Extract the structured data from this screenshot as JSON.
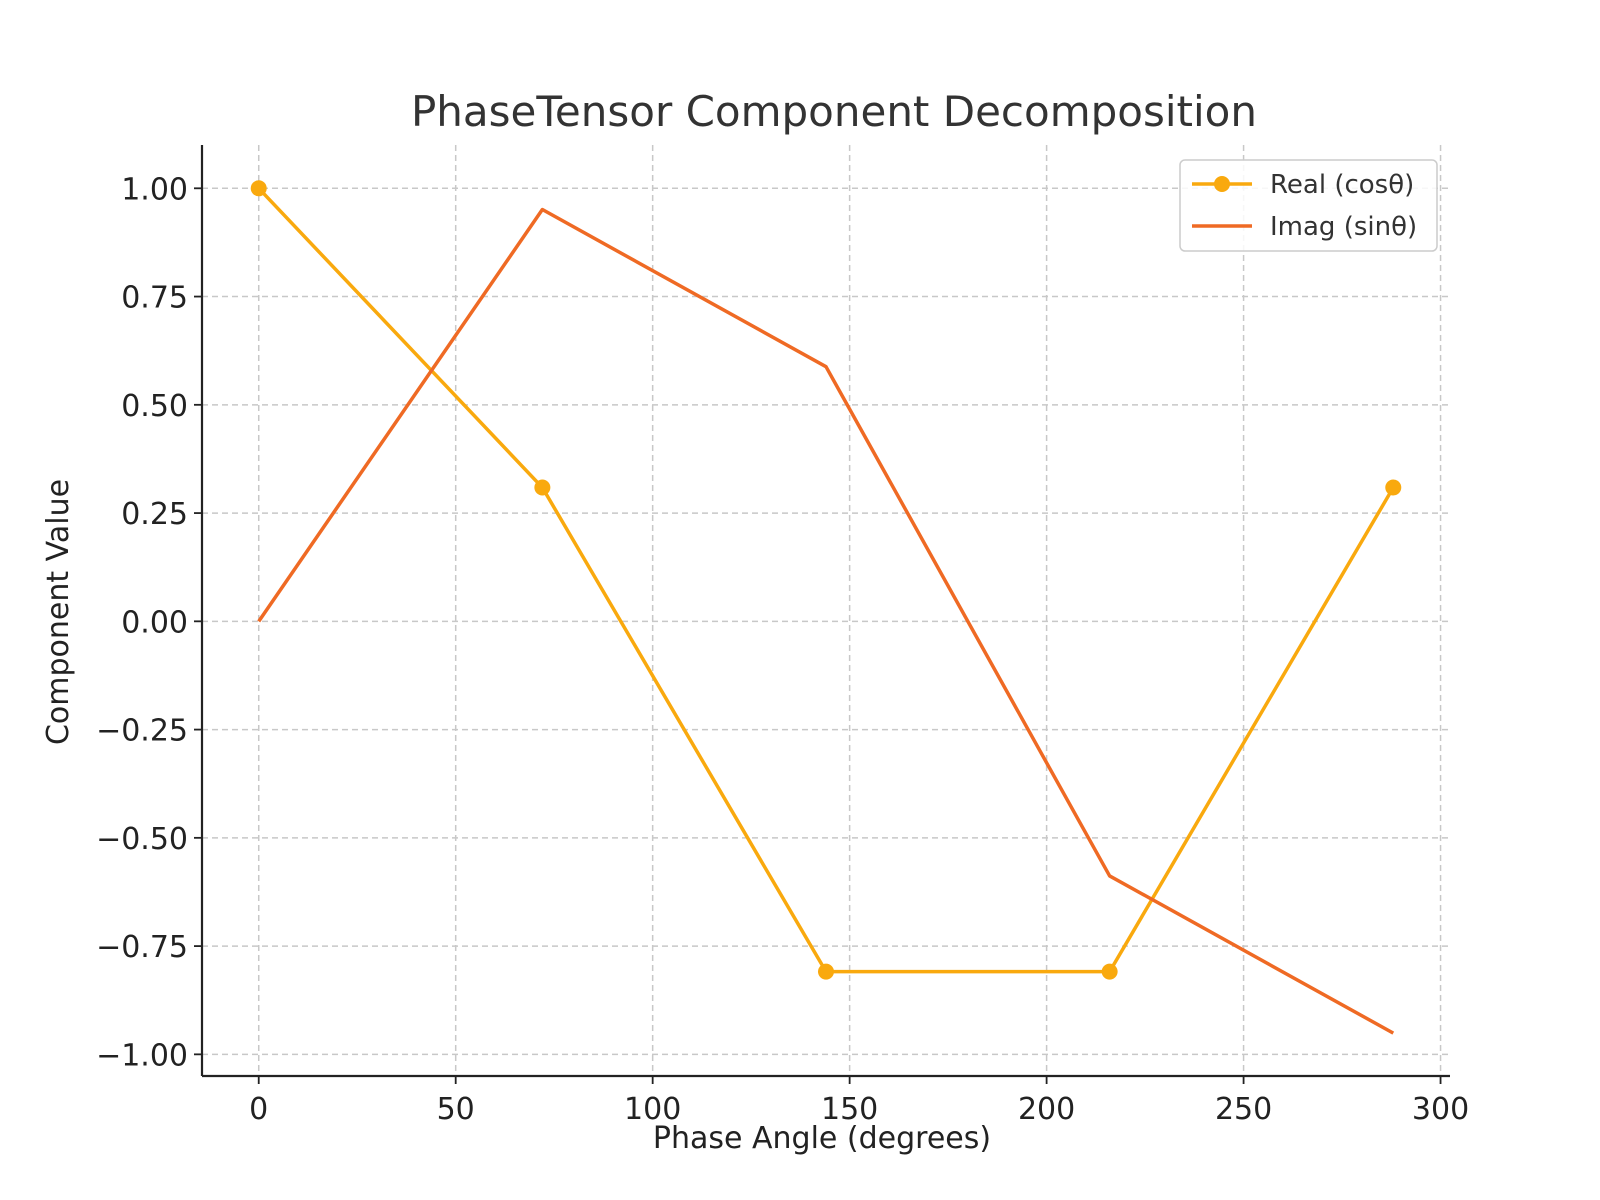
{
  "chart_data": {
    "type": "line",
    "title": "PhaseTensor Component Decomposition",
    "xlabel": "Phase Angle (degrees)",
    "ylabel": "Component Value",
    "xlim": [
      -14.4,
      302.4
    ],
    "ylim": [
      -1.05,
      1.1
    ],
    "x_ticks": [
      0,
      50,
      100,
      150,
      200,
      250,
      300
    ],
    "x_tick_labels": [
      "0",
      "50",
      "100",
      "150",
      "200",
      "250",
      "300"
    ],
    "y_ticks": [
      1.0,
      0.75,
      0.5,
      0.25,
      0.0,
      -0.25,
      -0.5,
      -0.75,
      -1.0
    ],
    "y_tick_labels": [
      "1.00",
      "0.75",
      "0.50",
      "0.25",
      "0.00",
      "−0.25",
      "−0.50",
      "−0.75",
      "−1.00"
    ],
    "grid": true,
    "legend_position": "top-right",
    "x": [
      0,
      72,
      144,
      216,
      288
    ],
    "series": [
      {
        "name": "Real (cosθ)",
        "values": [
          1.0,
          0.309,
          -0.809,
          -0.809,
          0.309
        ],
        "color": "#f9a90e",
        "markers": true
      },
      {
        "name": "Imag (sinθ)",
        "values": [
          0.0,
          0.951,
          0.588,
          -0.588,
          -0.951
        ],
        "color": "#ef6a24",
        "markers": false
      }
    ]
  }
}
